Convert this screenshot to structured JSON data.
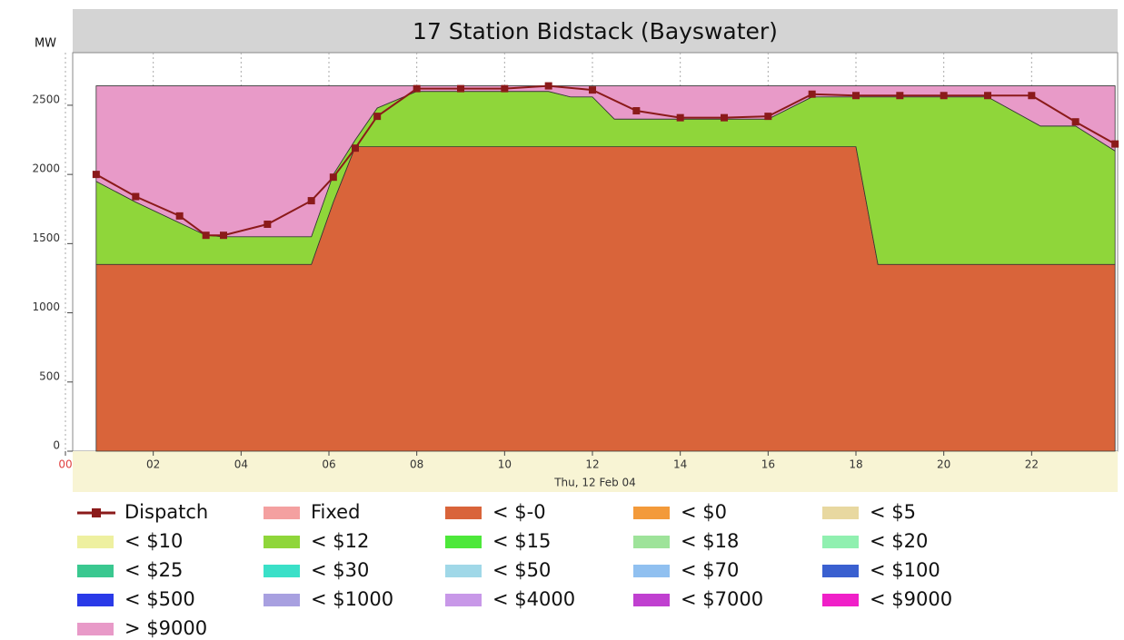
{
  "chart_data": {
    "type": "stacked-area",
    "title": "17 Station Bidstack (Bayswater)",
    "y_label": "MW",
    "x_label": "Thu, 12 Feb 04",
    "xlim": [
      0,
      24
    ],
    "ylim": [
      0,
      2880
    ],
    "xticks": [
      {
        "value": 0,
        "label": "00"
      },
      {
        "value": 2,
        "label": "02"
      },
      {
        "value": 4,
        "label": "04"
      },
      {
        "value": 6,
        "label": "06"
      },
      {
        "value": 8,
        "label": "08"
      },
      {
        "value": 10,
        "label": "10"
      },
      {
        "value": 12,
        "label": "12"
      },
      {
        "value": 14,
        "label": "14"
      },
      {
        "value": 16,
        "label": "16"
      },
      {
        "value": 18,
        "label": "18"
      },
      {
        "value": 20,
        "label": "20"
      },
      {
        "value": 22,
        "label": "22"
      }
    ],
    "yticks": [
      0,
      500,
      1000,
      1500,
      2000,
      2500
    ],
    "grid": true,
    "x": [
      0.7,
      1.6,
      2.6,
      3.2,
      3.6,
      4.6,
      5.6,
      6.1,
      6.6,
      7.1,
      8,
      11,
      11.5,
      12,
      12.5,
      16,
      17,
      18,
      18.5,
      21,
      22.2,
      23,
      23.9
    ],
    "series": [
      {
        "name": "Dispatch",
        "type": "line",
        "color": "#8b1a1a",
        "x": [
          0.7,
          1.6,
          2.6,
          3.2,
          3.6,
          4.6,
          5.6,
          6.1,
          6.6,
          7.1,
          8,
          9,
          10,
          11,
          12,
          13,
          14,
          15,
          16,
          17,
          18,
          19,
          20,
          21,
          22,
          23,
          23.9
        ],
        "values": [
          2000,
          1840,
          1700,
          1560,
          1560,
          1640,
          1810,
          1980,
          2190,
          2420,
          2620,
          2620,
          2620,
          2640,
          2610,
          2460,
          2410,
          2410,
          2420,
          2580,
          2570,
          2570,
          2570,
          2570,
          2570,
          2380,
          2220
        ]
      },
      {
        "name": "Fixed",
        "color": "#f4a0a0"
      },
      {
        "name": "< $-0",
        "color": "#d9643a",
        "values": [
          1350,
          1350,
          1350,
          1350,
          1350,
          1350,
          1350,
          1800,
          2200,
          2200,
          2200,
          2200,
          2200,
          2200,
          2200,
          2200,
          2200,
          2200,
          1350,
          1350,
          1350,
          1350,
          1350
        ]
      },
      {
        "name": "< $0",
        "color": "#f39a3a"
      },
      {
        "name": "< $5",
        "color": "#e8d8a0"
      },
      {
        "name": "< $10",
        "color": "#eef0a0"
      },
      {
        "name": "< $12",
        "color": "#8fd63a",
        "values": [
          600,
          450,
          300,
          210,
          200,
          200,
          200,
          200,
          50,
          280,
          400,
          400,
          360,
          360,
          200,
          200,
          360,
          360,
          1210,
          1210,
          1000,
          1000,
          820
        ]
      },
      {
        "name": "< $15",
        "color": "#4de83a"
      },
      {
        "name": "< $18",
        "color": "#9ee39a"
      },
      {
        "name": "< $20",
        "color": "#90f0b0"
      },
      {
        "name": "< $25",
        "color": "#3ac890"
      },
      {
        "name": "< $30",
        "color": "#3ae0c8"
      },
      {
        "name": "< $50",
        "color": "#a0d8e8"
      },
      {
        "name": "< $70",
        "color": "#90c0f0"
      },
      {
        "name": "< $100",
        "color": "#3a60d0"
      },
      {
        "name": "< $500",
        "color": "#2a3ae8"
      },
      {
        "name": "< $1000",
        "color": "#a8a0e0"
      },
      {
        "name": "< $4000",
        "color": "#c898e8"
      },
      {
        "name": "< $7000",
        "color": "#c040d0"
      },
      {
        "name": "< $9000",
        "color": "#f020c8"
      },
      {
        "name": "> $9000",
        "color": "#e89ac8",
        "values": [
          690,
          840,
          990,
          1080,
          1090,
          1090,
          1090,
          640,
          390,
          160,
          40,
          40,
          80,
          80,
          240,
          240,
          80,
          80,
          80,
          80,
          290,
          290,
          470
        ]
      }
    ]
  }
}
